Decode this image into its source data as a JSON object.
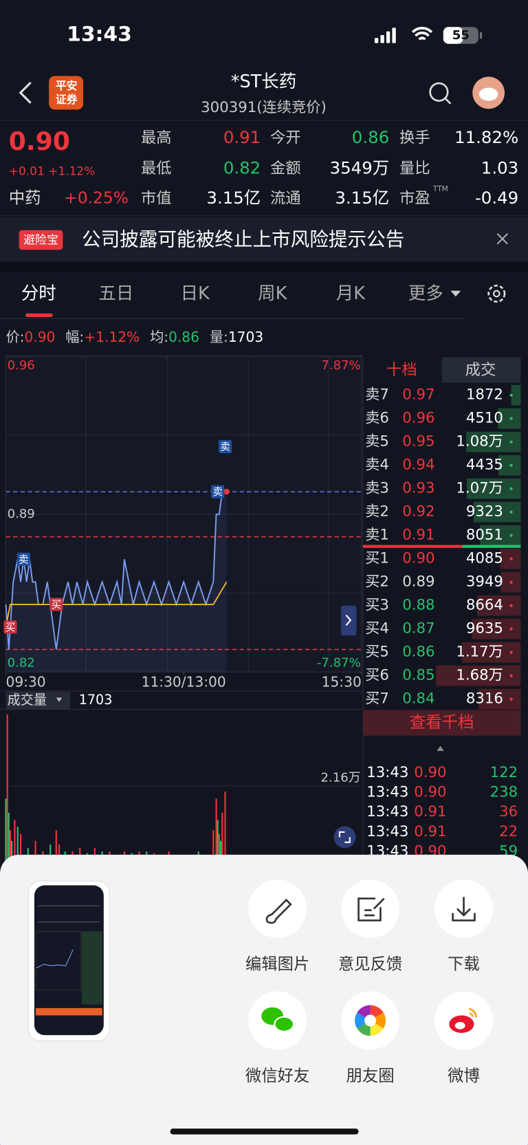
{
  "status": {
    "time": "13:43",
    "battery": "55"
  },
  "header": {
    "logo": [
      "平安",
      "证券"
    ],
    "title": "*ST长药",
    "subtitle": "300391(连续竞价)"
  },
  "quote": {
    "price": "0.90",
    "change": "+0.01 +1.12%",
    "sector": "中药",
    "sector_change": "+0.25%",
    "fields": [
      {
        "label": "最高",
        "value": "0.91",
        "color": "#f0353f"
      },
      {
        "label": "今开",
        "value": "0.86",
        "color": "#22c36b"
      },
      {
        "label": "换手",
        "value": "11.82%",
        "color": "#ffffff"
      },
      {
        "label": "最低",
        "value": "0.82",
        "color": "#22c36b"
      },
      {
        "label": "金额",
        "value": "3549万",
        "color": "#ffffff"
      },
      {
        "label": "量比",
        "value": "1.03",
        "color": "#ffffff"
      },
      {
        "label": "市值",
        "value": "3.15亿",
        "color": "#ffffff"
      },
      {
        "label": "流通",
        "value": "3.15亿",
        "color": "#ffffff"
      },
      {
        "label": "市盈",
        "sup": "TTM",
        "value": "-0.49",
        "color": "#ffffff"
      }
    ]
  },
  "banner": {
    "tag": "避险宝",
    "text": "公司披露可能被终止上市风险提示公告"
  },
  "tabs": [
    "分时",
    "五日",
    "日K",
    "周K",
    "月K",
    "更多"
  ],
  "info": [
    {
      "label": "价:",
      "value": "0.90",
      "color": "#f0353f"
    },
    {
      "label": "幅:",
      "value": "+1.12%",
      "color": "#f0353f"
    },
    {
      "label": "均:",
      "value": "0.86",
      "color": "#22c36b"
    },
    {
      "label": "量:",
      "value": "1703",
      "color": "#ffffff"
    }
  ],
  "chart_data": [
    {
      "type": "line",
      "xlim": [
        0,
        240
      ],
      "xticks": [
        {
          "value": 0,
          "label": "09:30"
        },
        {
          "value": 120,
          "label": "11:30/13:00"
        },
        {
          "value": 240,
          "label": "15:30"
        }
      ],
      "ylim": [
        0.82,
        0.96
      ],
      "yticks": [
        0.96,
        0.89,
        0.82
      ],
      "y2lim": [
        -7.87,
        7.87
      ],
      "y2ticks": [
        {
          "value": 7.87,
          "label": "7.87%"
        },
        {
          "value": -7.87,
          "label": "-7.87%"
        }
      ],
      "grid": true,
      "series": [
        {
          "color": "#7c9df2",
          "x": [
            0,
            2,
            5,
            8,
            10,
            12,
            14,
            16,
            18,
            20,
            22,
            25,
            28,
            30,
            34,
            38,
            42,
            45,
            48,
            52,
            55,
            60,
            65,
            70,
            75,
            78,
            80,
            83,
            86,
            90,
            95,
            100,
            105,
            110,
            115,
            120,
            125,
            130,
            135,
            140,
            142,
            144,
            146,
            149
          ],
          "values": [
            0.85,
            0.83,
            0.86,
            0.87,
            0.86,
            0.87,
            0.86,
            0.87,
            0.86,
            0.86,
            0.85,
            0.85,
            0.86,
            0.85,
            0.83,
            0.85,
            0.86,
            0.85,
            0.86,
            0.85,
            0.86,
            0.85,
            0.86,
            0.85,
            0.86,
            0.85,
            0.87,
            0.86,
            0.85,
            0.86,
            0.85,
            0.86,
            0.85,
            0.86,
            0.85,
            0.86,
            0.85,
            0.86,
            0.85,
            0.86,
            0.89,
            0.89,
            0.9,
            0.9
          ]
        },
        {
          "color": "#f0b429",
          "x": [
            0,
            3,
            140,
            149
          ],
          "values": [
            0.84,
            0.85,
            0.85,
            0.86
          ]
        }
      ],
      "reference_lines": [
        {
          "value": 0.9,
          "color": "#5f6fc8"
        },
        {
          "value": 0.88,
          "color": "#e0383f"
        },
        {
          "value": 0.83,
          "color": "#e0383f"
        }
      ],
      "annotations": [
        {
          "text": "卖",
          "x": 148,
          "y": 0.92,
          "color": "#1d4f9e"
        },
        {
          "text": "卖",
          "x": 143,
          "y": 0.9,
          "color": "#1d4f9e"
        },
        {
          "text": "卖",
          "x": 12,
          "y": 0.87,
          "color": "#1d4f9e"
        },
        {
          "text": "买",
          "x": 34,
          "y": 0.85,
          "color": "#c8303f"
        },
        {
          "text": "买",
          "x": 3,
          "y": 0.84,
          "color": "#c8303f"
        }
      ]
    },
    {
      "type": "bar",
      "title": "成交量",
      "latest": 1703,
      "xlim": [
        0,
        240
      ],
      "ylim": [
        0,
        42600
      ],
      "yticks": [
        {
          "value": 21600,
          "label": "2.16万"
        }
      ],
      "series": [
        {
          "color": "#f0353f",
          "x": [
            1,
            3,
            6,
            10,
            20,
            25,
            34,
            36,
            45,
            50,
            60,
            70,
            80,
            90,
            100,
            110,
            120,
            140,
            142,
            144,
            146,
            148
          ],
          "values": [
            42000,
            9000,
            12000,
            8000,
            6000,
            3000,
            9000,
            5000,
            3000,
            4000,
            4000,
            3000,
            3000,
            3000,
            2500,
            3000,
            2000,
            9000,
            18000,
            8000,
            14000,
            20000
          ]
        },
        {
          "color": "#22c36b",
          "x": [
            0,
            2,
            4,
            8,
            15,
            30,
            40,
            55,
            65,
            85,
            95,
            105,
            115,
            130,
            143,
            145
          ],
          "values": [
            18000,
            14000,
            6000,
            10000,
            4000,
            5000,
            3000,
            2500,
            3000,
            2500,
            3000,
            2000,
            2000,
            3000,
            12000,
            6000
          ]
        }
      ]
    }
  ],
  "book": {
    "tabs": [
      "十档",
      "成交"
    ],
    "sells": [
      {
        "name": "卖7",
        "price": "0.97",
        "color": "#f0353f",
        "volume": 1872
      },
      {
        "name": "卖6",
        "price": "0.96",
        "color": "#f0353f",
        "volume": 4510
      },
      {
        "name": "卖5",
        "price": "0.95",
        "color": "#f0353f",
        "volume": {
          "value": 10800,
          "label": "1.08万"
        }
      },
      {
        "name": "卖4",
        "price": "0.94",
        "color": "#f0353f",
        "volume": 4435
      },
      {
        "name": "卖3",
        "price": "0.93",
        "color": "#f0353f",
        "volume": {
          "value": 10700,
          "label": "1.07万"
        }
      },
      {
        "name": "卖2",
        "price": "0.92",
        "color": "#f0353f",
        "volume": 9323
      },
      {
        "name": "卖1",
        "price": "0.91",
        "color": "#f0353f",
        "volume": 8051
      }
    ],
    "buys": [
      {
        "name": "买1",
        "price": "0.90",
        "color": "#f0353f",
        "volume": 4085
      },
      {
        "name": "买2",
        "price": "0.89",
        "color": "#dddddd",
        "volume": 3949
      },
      {
        "name": "买3",
        "price": "0.88",
        "color": "#22c36b",
        "volume": 8664
      },
      {
        "name": "买4",
        "price": "0.87",
        "color": "#22c36b",
        "volume": 9635
      },
      {
        "name": "买5",
        "price": "0.86",
        "color": "#22c36b",
        "volume": {
          "value": 11700,
          "label": "1.17万"
        }
      },
      {
        "name": "买6",
        "price": "0.85",
        "color": "#22c36b",
        "volume": {
          "value": 16800,
          "label": "1.68万"
        }
      },
      {
        "name": "买7",
        "price": "0.84",
        "color": "#22c36b",
        "volume": 8316
      }
    ],
    "button": "查看千档"
  },
  "trades": [
    {
      "time": "13:43",
      "price": "0.90",
      "volume": "122",
      "price_color": "#f0353f",
      "volume_color": "#22c36b"
    },
    {
      "time": "13:43",
      "price": "0.90",
      "volume": "238",
      "price_color": "#f0353f",
      "volume_color": "#22c36b"
    },
    {
      "time": "13:43",
      "price": "0.91",
      "volume": "36",
      "price_color": "#f0353f",
      "volume_color": "#f0353f"
    },
    {
      "time": "13:43",
      "price": "0.91",
      "volume": "22",
      "price_color": "#f0353f",
      "volume_color": "#f0353f"
    },
    {
      "time": "13:43",
      "price": "0.90",
      "volume": "59",
      "price_color": "#f0353f",
      "volume_color": "#22c36b"
    }
  ],
  "actions": [
    "编辑图片",
    "意见反馈",
    "下载",
    "微信好友",
    "朋友圈",
    "微博"
  ]
}
